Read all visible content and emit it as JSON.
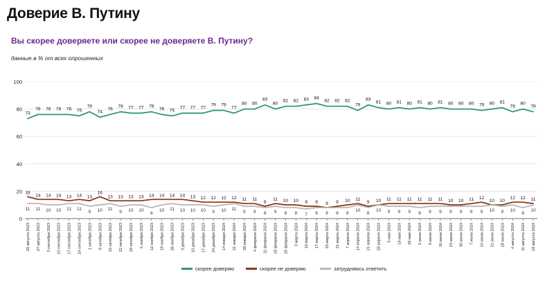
{
  "title": "Доверие В. Путину",
  "subtitle": "Вы скорее доверяете или скорее не доверяете В. Путину?",
  "note": "данные в % от всех опрошенных",
  "colors": {
    "trust": "#2e9b63",
    "distrust": "#8b3a10",
    "unsure": "#b8b8b8",
    "grid": "#d9d9d9",
    "axis": "#444444"
  },
  "chart_data": {
    "type": "line",
    "ylim": [
      0,
      100
    ],
    "yticks": [
      0,
      20,
      40,
      60,
      80,
      100
    ],
    "grid": true,
    "legend_position": "bottom",
    "categories": [
      "20 августа 2023",
      "27 августа 2023",
      "3 сентября 2023",
      "10 сентября 2023",
      "17 сентября 2023",
      "24 сентября 2023",
      "1 октября 2023",
      "8 октября 2023",
      "15 октября 2023",
      "22 октября 2023",
      "29 октября 2023",
      "5 ноября 2023",
      "12 ноября 2023",
      "19 ноября 2023",
      "26 ноября 2023",
      "3 декабря 2023",
      "10 декабря 2023",
      "17 декабря 2023",
      "24 декабря 2023",
      "14 января 2024",
      "21 января 2024",
      "28 января 2024",
      "4 февраля 2024",
      "11 февраля 2024",
      "18 февраля 2024",
      "25 февраля 2024",
      "3 марта 2024",
      "10 марта 2024",
      "17 марта 2024",
      "25 марта 2024",
      "31 марта 2024",
      "7 апреля 2024",
      "14 апреля 2024",
      "21 апреля 2024",
      "28 апреля 2024",
      "5 мая 2024",
      "19 мая 2024",
      "26 мая 2024",
      "2 июня 2024",
      "9 июня 2024",
      "16 июня 2024",
      "23 июня 2024",
      "30 июня 2024",
      "7 июля 2024",
      "14 июля 2024",
      "21 июля 2024",
      "28 июля 2024",
      "4 августа 2024",
      "11 августа 2024",
      "18 августа 2024"
    ],
    "series": [
      {
        "name": "скорее доверяю",
        "color_key": "trust",
        "values": [
          73,
          76,
          76,
          76,
          76,
          75,
          78,
          74,
          76,
          78,
          77,
          77,
          78,
          76,
          75,
          77,
          77,
          77,
          79,
          79,
          77,
          80,
          80,
          83,
          80,
          82,
          82,
          83,
          84,
          82,
          82,
          82,
          79,
          83,
          81,
          80,
          81,
          80,
          81,
          80,
          81,
          80,
          80,
          80,
          79,
          80,
          81,
          78,
          80,
          78
        ]
      },
      {
        "name": "скорее не доверяю",
        "color_key": "distrust",
        "values": [
          16,
          14,
          14,
          14,
          13,
          14,
          13,
          16,
          13,
          13,
          13,
          13,
          14,
          14,
          14,
          14,
          13,
          12,
          12,
          12,
          12,
          11,
          11,
          9,
          11,
          10,
          10,
          9,
          9,
          8,
          9,
          10,
          11,
          9,
          10,
          11,
          11,
          11,
          11,
          11,
          11,
          10,
          10,
          11,
          12,
          10,
          10,
          12,
          12,
          11
        ]
      },
      {
        "name": "затрудняюсь ответить",
        "color_key": "unsure",
        "values": [
          11,
          11,
          10,
          10,
          11,
          11,
          9,
          10,
          11,
          9,
          10,
          10,
          8,
          10,
          11,
          10,
          10,
          10,
          9,
          10,
          11,
          9,
          9,
          8,
          9,
          8,
          8,
          7,
          8,
          8,
          8,
          8,
          10,
          8,
          10,
          9,
          9,
          9,
          8,
          9,
          9,
          9,
          9,
          9,
          9,
          10,
          9,
          10,
          8,
          10
        ]
      }
    ]
  }
}
